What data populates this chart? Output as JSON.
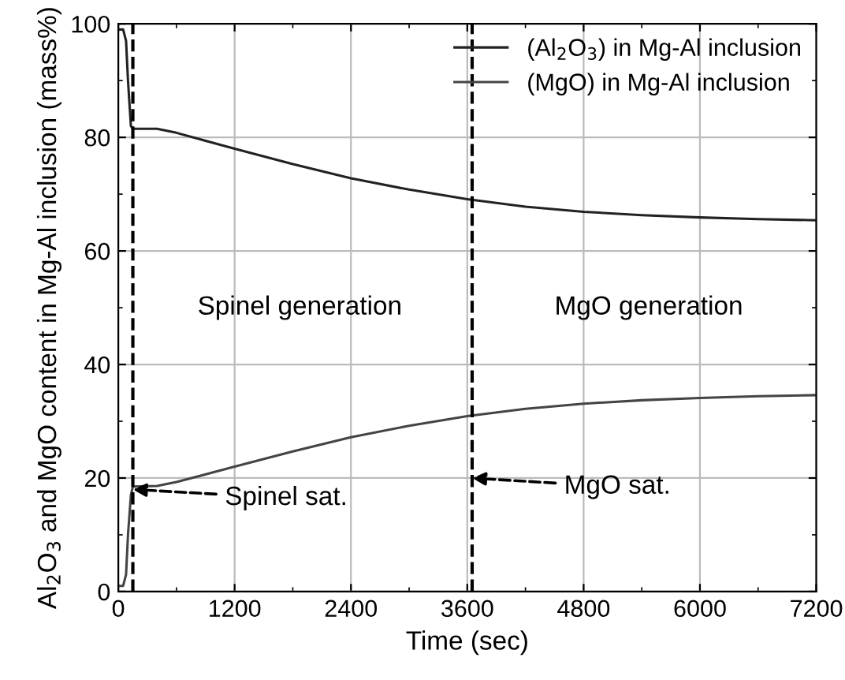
{
  "chart_data": {
    "type": "line",
    "xlabel": "Time (sec)",
    "ylabel": "Al$_{2}$O$_{3}$ and MgO content in Mg-Al inclusion (mass%)",
    "xlim": [
      0,
      7200
    ],
    "xticks": [
      0,
      1200,
      2400,
      3600,
      4800,
      6000,
      7200
    ],
    "ylim": [
      0,
      100
    ],
    "yticks": [
      0,
      20,
      40,
      60,
      80,
      100
    ],
    "grid": true,
    "legend": "top right",
    "line_style": "solid",
    "marker": "none",
    "series": [
      {
        "name": "(Al$_{2}$O$_{3}$) in Mg-Al inclusion",
        "color": "#222222",
        "x": [
          0,
          50,
          80,
          100,
          130,
          150,
          400,
          600,
          1200,
          1800,
          2400,
          3000,
          3600,
          4200,
          4800,
          5400,
          6000,
          6600,
          7200
        ],
        "values": [
          99,
          99,
          97,
          90,
          82,
          81.5,
          81.5,
          80.8,
          78,
          75.3,
          72.8,
          70.8,
          69.1,
          67.8,
          66.9,
          66.3,
          65.9,
          65.6,
          65.4
        ]
      },
      {
        "name": "(MgO) in Mg-Al inclusion",
        "color": "#444444",
        "x": [
          0,
          50,
          80,
          100,
          130,
          150,
          400,
          600,
          1200,
          1800,
          2400,
          3000,
          3600,
          4200,
          4800,
          5400,
          6000,
          6600,
          7200
        ],
        "values": [
          1,
          1,
          3,
          10,
          17,
          18.5,
          18.6,
          19.3,
          22,
          24.7,
          27.2,
          29.2,
          30.9,
          32.2,
          33.1,
          33.7,
          34.1,
          34.4,
          34.6
        ]
      }
    ],
    "ref_lines": [
      {
        "axis": "x",
        "value": 150,
        "color": "#000000",
        "line_style": "dashed"
      },
      {
        "axis": "x",
        "value": 3650,
        "color": "#000000",
        "line_style": "dashed"
      }
    ],
    "annotations": [
      "Spinel generation",
      "MgO generation",
      {
        "text": "Spinel sat.",
        "x": 150,
        "y": 18
      },
      {
        "text": "MgO sat.",
        "x": 3650,
        "y": 20
      }
    ]
  }
}
